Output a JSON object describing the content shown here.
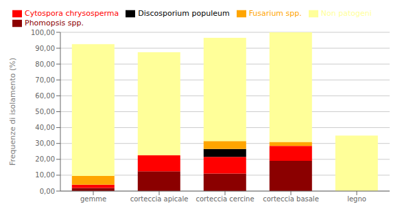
{
  "chart_data": {
    "type": "bar",
    "stacked": true,
    "grid": true,
    "legend": "upper left",
    "ylabel": "Frequenze di isolamento (%)",
    "categories": [
      "gemme",
      "corteccia apicale",
      "corteccia cercine",
      "corteccia basale",
      "legno"
    ],
    "series": [
      {
        "name": "Phomopsis spp.",
        "color": "#8B0000",
        "values": [
          2.0,
          12.5,
          11.0,
          19.0,
          0.0
        ]
      },
      {
        "name": "Cytospora chrysosperma",
        "color": "#FF0000",
        "values": [
          2.0,
          10.0,
          10.5,
          9.5,
          0.0
        ]
      },
      {
        "name": "Discosporium populeum",
        "color": "#000000",
        "values": [
          0.0,
          0.0,
          5.0,
          0.0,
          0.0
        ]
      },
      {
        "name": "Fusarium spp.",
        "color": "#FFA500",
        "values": [
          5.5,
          0.0,
          5.0,
          2.5,
          0.0
        ]
      },
      {
        "name": "Non patogeni",
        "color": "#FFFF99",
        "values": [
          83.0,
          65.0,
          65.0,
          69.0,
          35.0
        ]
      }
    ],
    "ylim": [
      0,
      100
    ],
    "yticks": [
      {
        "value": 0,
        "label": "0,00"
      },
      {
        "value": 10,
        "label": "10,00"
      },
      {
        "value": 20,
        "label": "20,00"
      },
      {
        "value": 30,
        "label": "30,00"
      },
      {
        "value": 40,
        "label": "40,00"
      },
      {
        "value": 50,
        "label": "50,00"
      },
      {
        "value": 60,
        "label": "60,00"
      },
      {
        "value": 70,
        "label": "70,00"
      },
      {
        "value": 80,
        "label": "80,00"
      },
      {
        "value": 90,
        "label": "90,00"
      },
      {
        "value": 100,
        "label": "100,00"
      }
    ]
  }
}
